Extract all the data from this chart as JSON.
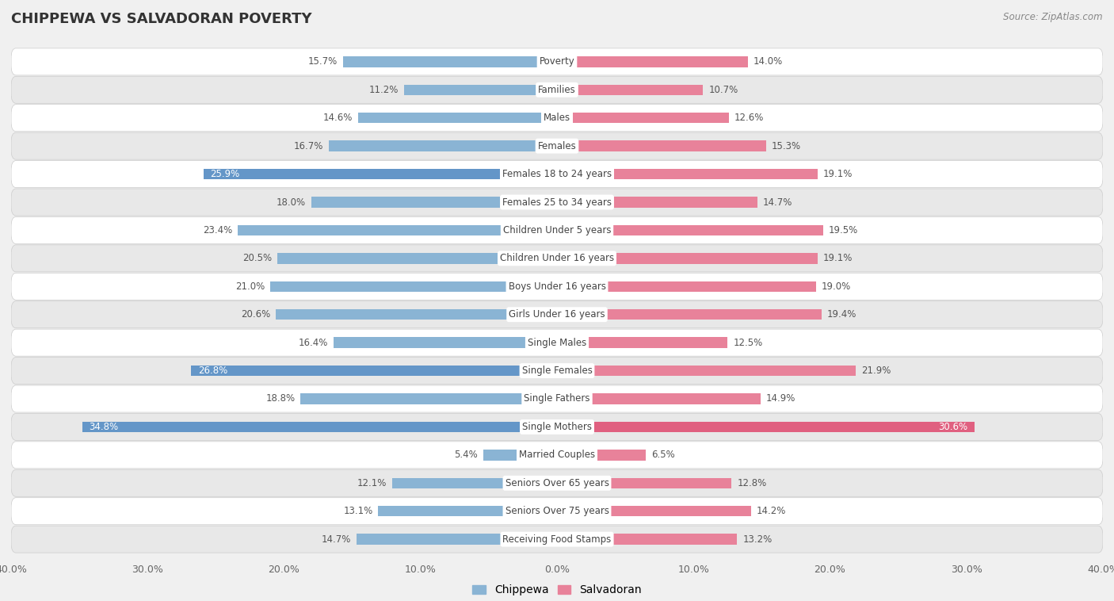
{
  "title": "CHIPPEWA VS SALVADORAN POVERTY",
  "source": "Source: ZipAtlas.com",
  "categories": [
    "Poverty",
    "Families",
    "Males",
    "Females",
    "Females 18 to 24 years",
    "Females 25 to 34 years",
    "Children Under 5 years",
    "Children Under 16 years",
    "Boys Under 16 years",
    "Girls Under 16 years",
    "Single Males",
    "Single Females",
    "Single Fathers",
    "Single Mothers",
    "Married Couples",
    "Seniors Over 65 years",
    "Seniors Over 75 years",
    "Receiving Food Stamps"
  ],
  "chippewa_values": [
    15.7,
    11.2,
    14.6,
    16.7,
    25.9,
    18.0,
    23.4,
    20.5,
    21.0,
    20.6,
    16.4,
    26.8,
    18.8,
    34.8,
    5.4,
    12.1,
    13.1,
    14.7
  ],
  "salvadoran_values": [
    14.0,
    10.7,
    12.6,
    15.3,
    19.1,
    14.7,
    19.5,
    19.1,
    19.0,
    19.4,
    12.5,
    21.9,
    14.9,
    30.6,
    6.5,
    12.8,
    14.2,
    13.2
  ],
  "chippewa_color": "#8ab4d4",
  "salvadoran_color": "#e8829a",
  "chippewa_highlight_color": "#6496c8",
  "salvadoran_highlight_color": "#e06080",
  "background_color": "#f0f0f0",
  "row_light": "#ffffff",
  "row_dark": "#e8e8e8",
  "axis_limit": 40.0,
  "legend_chippewa": "Chippewa",
  "legend_salvadoran": "Salvadoran",
  "value_color": "#555555",
  "label_bg": "#ffffff",
  "label_text_color": "#444444"
}
